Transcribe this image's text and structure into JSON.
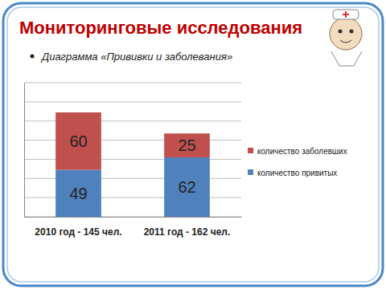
{
  "chart_data": {
    "type": "bar",
    "title": "Мониторинговые исследования",
    "subtitle": "Диаграмма «Прививки и заболевания»",
    "categories": [
      "2010 год - 145 чел.",
      "2011 год - 162 чел."
    ],
    "series": [
      {
        "name": "количество привитых",
        "color": "#4f81bd",
        "values": [
          49,
          62
        ]
      },
      {
        "name": "количество заболевших",
        "color": "#c0504d",
        "values": [
          60,
          25
        ]
      }
    ],
    "ylim": [
      0,
      140
    ],
    "yticks": [
      0,
      20,
      40,
      60,
      80,
      100,
      120,
      140
    ],
    "stacked": true,
    "grid": true,
    "legend": "right",
    "data_labels": true,
    "tick_labels": "x"
  }
}
